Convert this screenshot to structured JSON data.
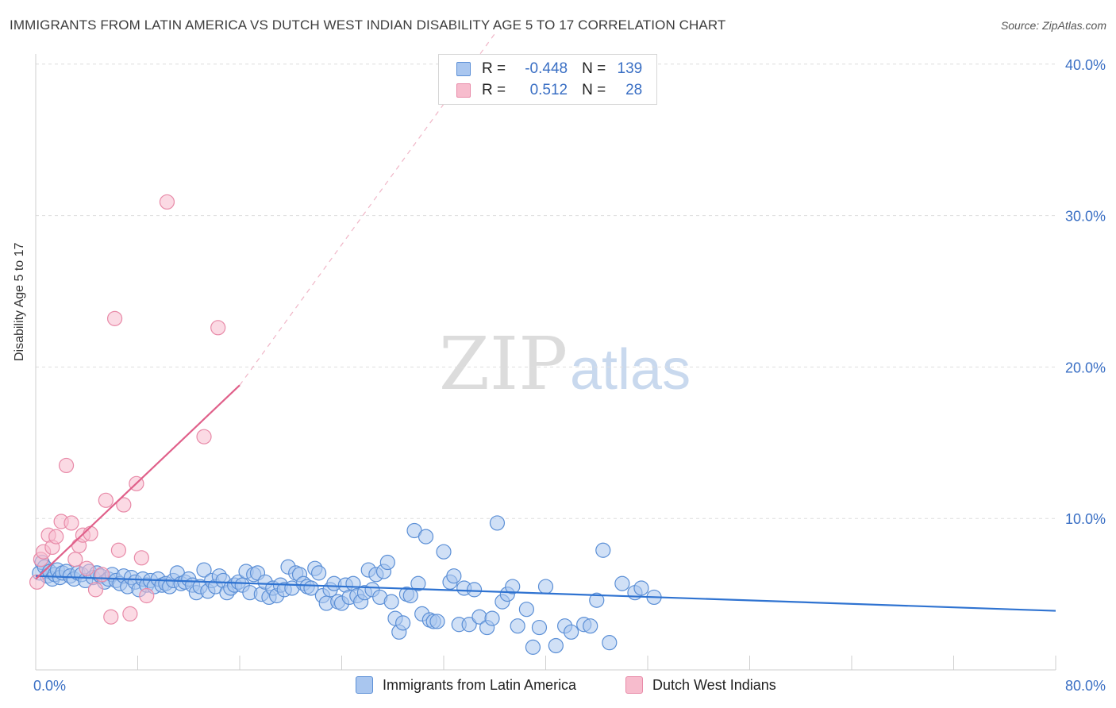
{
  "header": {
    "title": "IMMIGRANTS FROM LATIN AMERICA VS DUTCH WEST INDIAN DISABILITY AGE 5 TO 17 CORRELATION CHART",
    "source": "Source: ZipAtlas.com"
  },
  "watermark": {
    "zip": "ZIP",
    "atlas": "atlas"
  },
  "legend": {
    "rows": [
      {
        "r_label": "R =",
        "r_value": "-0.448",
        "n_label": "N =",
        "n_value": "139"
      },
      {
        "r_label": "R =",
        "r_value": "0.512",
        "n_label": "N =",
        "n_value": "28"
      }
    ]
  },
  "bottom_legend": {
    "series1": "Immigrants from Latin America",
    "series2": "Dutch West Indians"
  },
  "colors": {
    "blue_fill": "#a9c6ef",
    "blue_stroke": "#5b8fd6",
    "blue_line": "#2f73d1",
    "pink_fill": "#f7bccd",
    "pink_stroke": "#e88aa8",
    "pink_line": "#e0608a",
    "tick_blue": "#3a6fc4"
  },
  "chart_data": {
    "type": "scatter",
    "title": "IMMIGRANTS FROM LATIN AMERICA VS DUTCH WEST INDIAN DISABILITY AGE 5 TO 17 CORRELATION CHART",
    "xlabel": "",
    "ylabel": "Disability Age 5 to 17",
    "xlim": [
      0,
      80
    ],
    "ylim": [
      0,
      42
    ],
    "x_tick_labels": [
      "0.0%",
      "80.0%"
    ],
    "y_ticks": [
      10,
      20,
      30,
      40
    ],
    "y_tick_labels": [
      "10.0%",
      "20.0%",
      "30.0%",
      "40.0%"
    ],
    "series": [
      {
        "name": "Immigrants from Latin America",
        "R": -0.448,
        "N": 139,
        "trend": {
          "x": [
            0,
            80
          ],
          "y": [
            6.2,
            3.9
          ]
        },
        "points": [
          [
            0.3,
            6.4
          ],
          [
            0.5,
            7.1
          ],
          [
            0.7,
            6.8
          ],
          [
            0.9,
            6.2
          ],
          [
            1.1,
            6.5
          ],
          [
            1.3,
            6.0
          ],
          [
            1.5,
            6.3
          ],
          [
            1.7,
            6.6
          ],
          [
            1.9,
            6.1
          ],
          [
            2.1,
            6.4
          ],
          [
            2.4,
            6.5
          ],
          [
            2.7,
            6.2
          ],
          [
            3.0,
            6.0
          ],
          [
            3.3,
            6.4
          ],
          [
            3.6,
            6.3
          ],
          [
            3.9,
            5.9
          ],
          [
            4.2,
            6.5
          ],
          [
            4.5,
            6.1
          ],
          [
            4.8,
            6.4
          ],
          [
            5.1,
            6.2
          ],
          [
            5.4,
            5.8
          ],
          [
            5.7,
            6.0
          ],
          [
            6.0,
            6.3
          ],
          [
            6.3,
            5.9
          ],
          [
            6.6,
            5.7
          ],
          [
            6.9,
            6.2
          ],
          [
            7.2,
            5.5
          ],
          [
            7.5,
            6.1
          ],
          [
            7.8,
            5.8
          ],
          [
            8.1,
            5.3
          ],
          [
            8.4,
            6.0
          ],
          [
            8.7,
            5.6
          ],
          [
            9.0,
            5.9
          ],
          [
            9.3,
            5.5
          ],
          [
            9.6,
            6.0
          ],
          [
            9.9,
            5.6
          ],
          [
            10.2,
            5.7
          ],
          [
            10.5,
            5.5
          ],
          [
            10.8,
            5.9
          ],
          [
            11.1,
            6.4
          ],
          [
            11.4,
            5.7
          ],
          [
            11.7,
            5.8
          ],
          [
            12.0,
            6.0
          ],
          [
            12.3,
            5.6
          ],
          [
            12.6,
            5.1
          ],
          [
            12.9,
            5.5
          ],
          [
            13.2,
            6.6
          ],
          [
            13.5,
            5.2
          ],
          [
            13.8,
            5.9
          ],
          [
            14.1,
            5.5
          ],
          [
            14.4,
            6.2
          ],
          [
            14.7,
            5.9
          ],
          [
            15.0,
            5.1
          ],
          [
            15.3,
            5.4
          ],
          [
            15.6,
            5.6
          ],
          [
            15.9,
            5.8
          ],
          [
            16.2,
            5.6
          ],
          [
            16.5,
            6.5
          ],
          [
            16.8,
            5.1
          ],
          [
            17.1,
            6.3
          ],
          [
            17.4,
            6.4
          ],
          [
            17.7,
            5.0
          ],
          [
            18.0,
            5.8
          ],
          [
            18.3,
            4.8
          ],
          [
            18.6,
            5.4
          ],
          [
            18.9,
            4.9
          ],
          [
            19.2,
            5.6
          ],
          [
            19.5,
            5.3
          ],
          [
            19.8,
            6.8
          ],
          [
            20.1,
            5.4
          ],
          [
            20.4,
            6.4
          ],
          [
            20.7,
            6.3
          ],
          [
            21.0,
            5.7
          ],
          [
            21.3,
            5.5
          ],
          [
            21.6,
            5.4
          ],
          [
            21.9,
            6.7
          ],
          [
            22.2,
            6.4
          ],
          [
            22.5,
            4.9
          ],
          [
            22.8,
            4.4
          ],
          [
            23.1,
            5.3
          ],
          [
            23.4,
            5.7
          ],
          [
            23.7,
            4.5
          ],
          [
            24.0,
            4.4
          ],
          [
            24.3,
            5.6
          ],
          [
            24.6,
            4.8
          ],
          [
            24.9,
            5.7
          ],
          [
            25.2,
            4.9
          ],
          [
            25.5,
            4.5
          ],
          [
            25.8,
            5.1
          ],
          [
            26.1,
            6.6
          ],
          [
            26.4,
            5.3
          ],
          [
            26.7,
            6.3
          ],
          [
            27.0,
            4.8
          ],
          [
            27.3,
            6.5
          ],
          [
            27.6,
            7.1
          ],
          [
            27.9,
            4.5
          ],
          [
            28.2,
            3.4
          ],
          [
            28.5,
            2.5
          ],
          [
            28.8,
            3.1
          ],
          [
            29.1,
            5.0
          ],
          [
            29.4,
            4.9
          ],
          [
            29.7,
            9.2
          ],
          [
            30.0,
            5.7
          ],
          [
            30.3,
            3.7
          ],
          [
            30.6,
            8.8
          ],
          [
            30.9,
            3.3
          ],
          [
            31.2,
            3.2
          ],
          [
            31.5,
            3.2
          ],
          [
            32.0,
            7.8
          ],
          [
            32.5,
            5.8
          ],
          [
            32.8,
            6.2
          ],
          [
            33.2,
            3.0
          ],
          [
            33.6,
            5.4
          ],
          [
            34.0,
            3.0
          ],
          [
            34.4,
            5.3
          ],
          [
            34.8,
            3.5
          ],
          [
            35.4,
            2.8
          ],
          [
            35.8,
            3.4
          ],
          [
            36.2,
            9.7
          ],
          [
            36.6,
            4.5
          ],
          [
            37.0,
            5.0
          ],
          [
            37.4,
            5.5
          ],
          [
            37.8,
            2.9
          ],
          [
            38.5,
            4.0
          ],
          [
            39.0,
            1.5
          ],
          [
            39.5,
            2.8
          ],
          [
            40.0,
            5.5
          ],
          [
            40.8,
            1.6
          ],
          [
            41.5,
            2.9
          ],
          [
            42.0,
            2.5
          ],
          [
            43.0,
            3.0
          ],
          [
            43.5,
            2.9
          ],
          [
            44.0,
            4.6
          ],
          [
            44.5,
            7.9
          ],
          [
            45.0,
            1.8
          ],
          [
            46.0,
            5.7
          ],
          [
            47.0,
            5.1
          ],
          [
            47.5,
            5.4
          ],
          [
            48.5,
            4.8
          ]
        ]
      },
      {
        "name": "Dutch West Indians",
        "R": 0.512,
        "N": 28,
        "trend": {
          "x": [
            0,
            16
          ],
          "y": [
            6.0,
            18.8
          ]
        },
        "trend_ext": {
          "x": [
            16,
            36
          ],
          "y": [
            18.8,
            42
          ]
        },
        "points": [
          [
            0.1,
            5.8
          ],
          [
            0.4,
            7.3
          ],
          [
            0.6,
            7.8
          ],
          [
            1.0,
            8.9
          ],
          [
            1.3,
            8.1
          ],
          [
            1.6,
            8.8
          ],
          [
            2.0,
            9.8
          ],
          [
            2.4,
            13.5
          ],
          [
            2.8,
            9.7
          ],
          [
            3.1,
            7.3
          ],
          [
            3.4,
            8.2
          ],
          [
            3.7,
            8.9
          ],
          [
            4.0,
            6.7
          ],
          [
            4.3,
            9.0
          ],
          [
            4.7,
            5.3
          ],
          [
            5.2,
            6.3
          ],
          [
            5.5,
            11.2
          ],
          [
            5.9,
            3.5
          ],
          [
            6.2,
            23.2
          ],
          [
            6.5,
            7.9
          ],
          [
            6.9,
            10.9
          ],
          [
            7.4,
            3.7
          ],
          [
            7.9,
            12.3
          ],
          [
            8.3,
            7.4
          ],
          [
            8.7,
            4.9
          ],
          [
            10.3,
            30.9
          ],
          [
            13.2,
            15.4
          ],
          [
            14.3,
            22.6
          ]
        ]
      }
    ]
  }
}
